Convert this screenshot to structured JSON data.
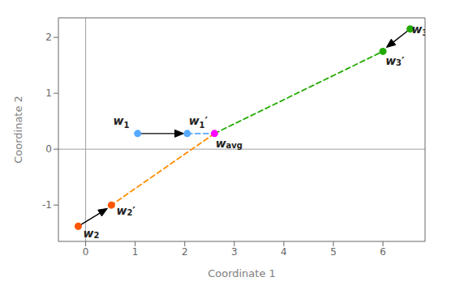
{
  "chart_data": {
    "type": "scatter",
    "xlabel": "Coordinate 1",
    "ylabel": "Coordinate 2",
    "xlim": [
      -0.55,
      6.85
    ],
    "ylim": [
      -1.65,
      2.35
    ],
    "xticks": [
      0,
      1,
      2,
      3,
      4,
      5,
      6
    ],
    "yticks": [
      -1,
      0,
      1,
      2
    ],
    "grid": false,
    "x": [
      1.05,
      2.05,
      -0.15,
      0.52,
      6.55,
      6.0,
      2.6
    ],
    "values": [
      0.28,
      0.28,
      -1.38,
      -1.0,
      2.15,
      1.75,
      0.28
    ],
    "colors": [
      "#55AAFF",
      "#55AAFF",
      "#FF5500",
      "#FF5500",
      "#22AA00",
      "#22AA00",
      "#FF00FF"
    ],
    "reference_lines": {
      "x": 0,
      "y": 0
    },
    "arrows": [
      {
        "x1": 1.05,
        "y1": 0.28,
        "x2": 1.98,
        "y2": 0.28,
        "color": "black"
      },
      {
        "x1": -0.15,
        "y1": -1.38,
        "x2": 0.44,
        "y2": -1.06,
        "color": "black"
      },
      {
        "x1": 6.55,
        "y1": 2.15,
        "x2": 6.07,
        "y2": 1.82,
        "color": "black"
      }
    ],
    "dashed_lines": [
      {
        "x1": 2.05,
        "y1": 0.28,
        "x2": 2.6,
        "y2": 0.28,
        "color": "#55AAFF"
      },
      {
        "x1": 2.6,
        "y1": 0.28,
        "x2": 0.52,
        "y2": -1.0,
        "color": "#FF8C00"
      },
      {
        "x1": 2.6,
        "y1": 0.28,
        "x2": 6.0,
        "y2": 1.75,
        "color": "#22AA00"
      }
    ],
    "annotations": [
      {
        "x": 0.88,
        "y": 0.38,
        "text": "w1"
      },
      {
        "x": 2.08,
        "y": 0.38,
        "text": "w1′"
      },
      {
        "x": 2.62,
        "y": 0.17,
        "text": "wavg"
      },
      {
        "x": -0.05,
        "y": -1.43,
        "text": "w2"
      },
      {
        "x": 0.62,
        "y": -1.03,
        "text": "w2′"
      },
      {
        "x": 6.58,
        "y": 2.15,
        "text": "w3"
      },
      {
        "x": 6.05,
        "y": 1.65,
        "text": "w3′"
      }
    ]
  }
}
